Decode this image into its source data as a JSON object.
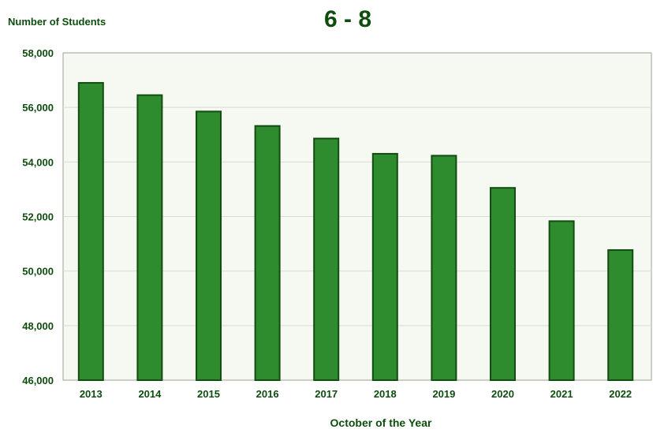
{
  "chart_data": {
    "type": "bar",
    "title": "6 - 8",
    "ylabel": "Number of Students",
    "xlabel": "October of the Year",
    "categories": [
      "2013",
      "2014",
      "2015",
      "2016",
      "2017",
      "2018",
      "2019",
      "2020",
      "2021",
      "2022"
    ],
    "values": [
      56900,
      56450,
      55850,
      55320,
      54860,
      54300,
      54230,
      53050,
      51830,
      50770
    ],
    "ylim": [
      46000,
      58000
    ],
    "yticks": [
      46000,
      48000,
      50000,
      52000,
      54000,
      56000,
      58000
    ],
    "ytick_labels": [
      "46,000",
      "48,000",
      "50,000",
      "52,000",
      "54,000",
      "56,000",
      "58,000"
    ],
    "grid": true,
    "colors": {
      "bar": "#2e8b2e",
      "bar_edge": "#124d12",
      "text": "#0f4d0f",
      "plot_bg": "#f6f9f1",
      "grid": "#d8dcd2",
      "axis": "#9aa396"
    }
  }
}
